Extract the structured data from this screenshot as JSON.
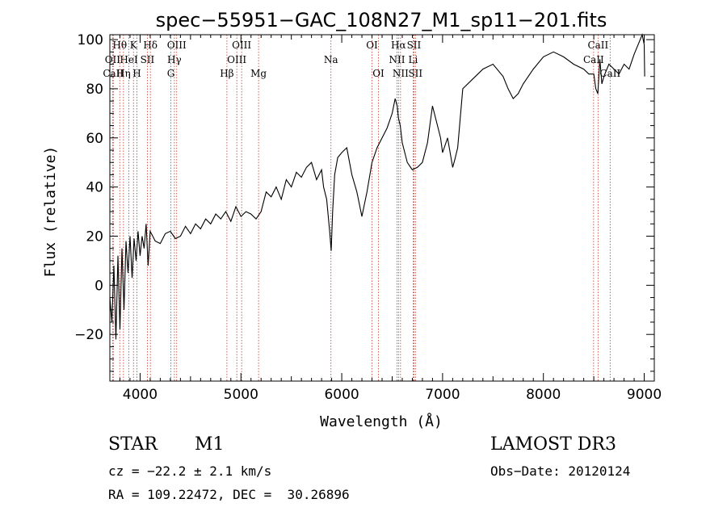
{
  "chart_data": {
    "type": "line",
    "title": "spec−55951−GAC_108N27_M1_sp11−201.fits",
    "xlabel": "Wavelength (Å)",
    "ylabel": "Flux (relative)",
    "xlim": [
      3700,
      9100
    ],
    "ylim": [
      -39,
      102
    ],
    "x_ticks": [
      4000,
      5000,
      6000,
      7000,
      8000,
      9000
    ],
    "y_ticks": [
      -20,
      0,
      20,
      40,
      60,
      80,
      100
    ],
    "x_tick_labels": [
      "4000",
      "5000",
      "6000",
      "7000",
      "8000",
      "9000"
    ],
    "y_tick_labels": [
      "−20",
      "0",
      "20",
      "40",
      "60",
      "80",
      "100"
    ],
    "series": [
      {
        "name": "flux",
        "x": [
          3700,
          3720,
          3740,
          3760,
          3780,
          3800,
          3820,
          3840,
          3860,
          3880,
          3900,
          3920,
          3940,
          3960,
          3980,
          4000,
          4020,
          4040,
          4060,
          4080,
          4100,
          4150,
          4200,
          4250,
          4300,
          4350,
          4400,
          4450,
          4500,
          4550,
          4600,
          4650,
          4700,
          4750,
          4800,
          4850,
          4900,
          4950,
          5000,
          5050,
          5100,
          5150,
          5200,
          5250,
          5300,
          5350,
          5400,
          5450,
          5500,
          5550,
          5600,
          5650,
          5700,
          5750,
          5800,
          5820,
          5850,
          5880,
          5895,
          5910,
          5930,
          5960,
          6000,
          6050,
          6100,
          6150,
          6200,
          6250,
          6300,
          6350,
          6400,
          6450,
          6500,
          6530,
          6550,
          6563,
          6580,
          6600,
          6650,
          6700,
          6750,
          6800,
          6850,
          6900,
          6950,
          6980,
          7000,
          7050,
          7100,
          7120,
          7150,
          7200,
          7300,
          7400,
          7500,
          7600,
          7650,
          7700,
          7750,
          7800,
          7900,
          8000,
          8100,
          8200,
          8300,
          8400,
          8450,
          8500,
          8520,
          8540,
          8560,
          8580,
          8600,
          8650,
          8700,
          8750,
          8800,
          8850,
          8900,
          8950,
          8980,
          9000,
          9005
        ],
        "y": [
          -5,
          -15,
          8,
          -22,
          12,
          -18,
          15,
          -10,
          18,
          5,
          20,
          3,
          19,
          10,
          22,
          12,
          20,
          15,
          25,
          8,
          22,
          18,
          17,
          21,
          22,
          19,
          20,
          24,
          21,
          25,
          23,
          27,
          25,
          29,
          27,
          30,
          26,
          32,
          28,
          30,
          29,
          27,
          30,
          38,
          36,
          40,
          35,
          43,
          40,
          46,
          44,
          48,
          50,
          43,
          47,
          40,
          35,
          22,
          14,
          30,
          45,
          52,
          54,
          56,
          45,
          38,
          28,
          38,
          50,
          56,
          60,
          64,
          70,
          76,
          73,
          68,
          65,
          58,
          50,
          47,
          48,
          50,
          58,
          73,
          65,
          60,
          54,
          60,
          48,
          51,
          56,
          80,
          84,
          88,
          90,
          85,
          80,
          76,
          78,
          82,
          88,
          93,
          95,
          93,
          90,
          88,
          86,
          86,
          80,
          78,
          92,
          82,
          85,
          90,
          88,
          86,
          90,
          88,
          94,
          99,
          102,
          98,
          85
        ]
      }
    ],
    "emission_lines": [
      {
        "name": "Hθ",
        "x": 3798,
        "row": 0
      },
      {
        "name": "OII",
        "x": 3727,
        "row": 1
      },
      {
        "name": "CaII",
        "x": 3734,
        "row": 2
      },
      {
        "name": "HeI",
        "x": 3889,
        "row": 1
      },
      {
        "name": "K",
        "x": 3934,
        "row": 0
      },
      {
        "name": "Hη",
        "x": 3835,
        "row": 2
      },
      {
        "name": "H",
        "x": 3968,
        "row": 2
      },
      {
        "name": "SII",
        "x": 4072,
        "row": 1
      },
      {
        "name": "Hδ",
        "x": 4102,
        "row": 0
      },
      {
        "name": "OIII",
        "x": 4363,
        "row": 0
      },
      {
        "name": "Hγ",
        "x": 4340,
        "row": 1
      },
      {
        "name": "G",
        "x": 4305,
        "row": 2
      },
      {
        "name": "Hβ",
        "x": 4861,
        "row": 2
      },
      {
        "name": "OIII",
        "x": 4959,
        "row": 1
      },
      {
        "name": "OIII",
        "x": 5007,
        "row": 0
      },
      {
        "name": "Mg",
        "x": 5175,
        "row": 2
      },
      {
        "name": "Na",
        "x": 5893,
        "row": 1
      },
      {
        "name": "OI",
        "x": 6300,
        "row": 0
      },
      {
        "name": "OI",
        "x": 6364,
        "row": 2
      },
      {
        "name": "Hα",
        "x": 6563,
        "row": 0
      },
      {
        "name": "NII",
        "x": 6548,
        "row": 1
      },
      {
        "name": "NII",
        "x": 6583,
        "row": 2
      },
      {
        "name": "Li",
        "x": 6708,
        "row": 1
      },
      {
        "name": "SII",
        "x": 6716,
        "row": 0
      },
      {
        "name": "SII",
        "x": 6731,
        "row": 2
      },
      {
        "name": "CaII",
        "x": 8542,
        "row": 0
      },
      {
        "name": "CaII",
        "x": 8498,
        "row": 1
      },
      {
        "name": "CaII",
        "x": 8662,
        "row": 2
      }
    ]
  },
  "footer": {
    "object_class": "STAR",
    "subclass": "M1",
    "survey": "LAMOST DR3",
    "redshift": "cz = −22.2 ± 2.1 km/s",
    "obs_date": "Obs−Date: 20120124",
    "coords": "RA = 109.22472, DEC =  30.26896"
  }
}
